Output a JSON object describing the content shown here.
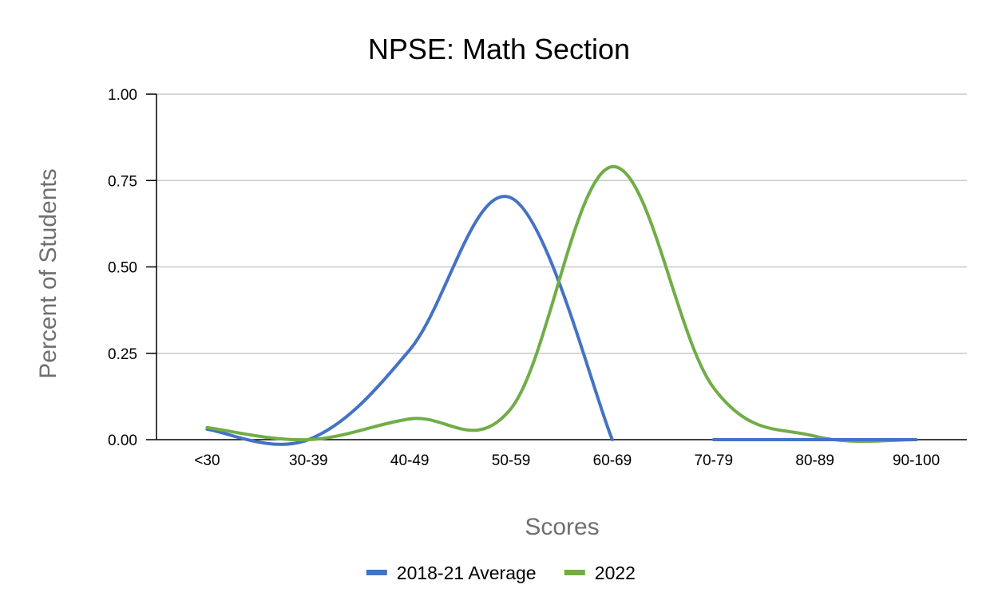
{
  "chart_data": {
    "type": "line",
    "title": "NPSE: Math Section",
    "xlabel": "Scores",
    "ylabel": "Percent of Students",
    "categories": [
      "<30",
      "30-39",
      "40-49",
      "50-59",
      "60-69",
      "70-79",
      "80-89",
      "90-100"
    ],
    "ylim": [
      0,
      1
    ],
    "yticks": [
      0,
      0.25,
      0.5,
      0.75,
      1
    ],
    "ytick_labels": [
      "0.00",
      "0.25",
      "0.50",
      "0.75",
      "1.00"
    ],
    "grid": true,
    "smooth": true,
    "legend_position": "bottom",
    "series": [
      {
        "name": "2018-21 Average",
        "color": "#4472C4",
        "values": [
          0.03,
          0.0,
          0.26,
          0.7,
          0.0,
          null,
          null,
          null
        ]
      },
      {
        "name": "2022",
        "color": "#70AD47",
        "values": [
          0.035,
          0.0,
          0.06,
          0.09,
          0.79,
          0.15,
          0.01,
          0.0
        ]
      },
      {
        "name": "",
        "color": "#4472C4",
        "values": [
          null,
          null,
          null,
          null,
          null,
          0.0,
          0.0,
          0.0
        ]
      }
    ]
  }
}
